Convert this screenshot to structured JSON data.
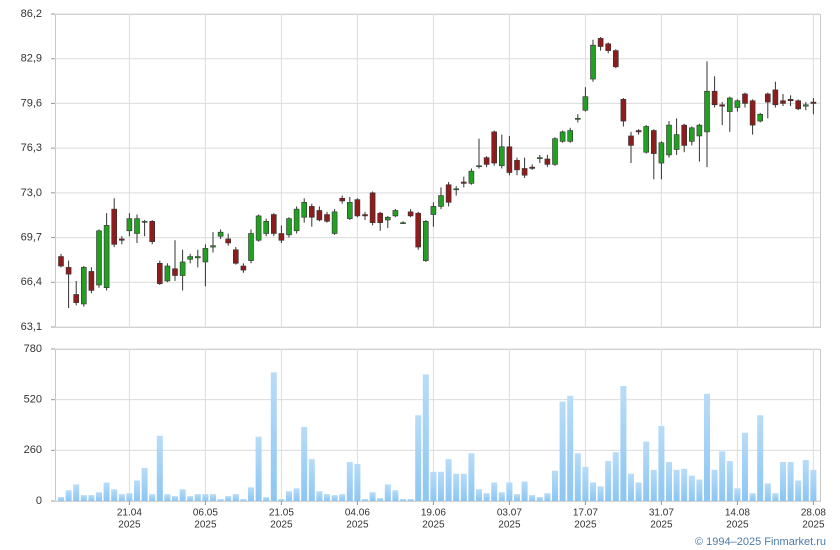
{
  "chart_data": [
    {
      "type": "candlestick",
      "up_color": "#22a022",
      "down_color": "#8e1c1c",
      "outline_color": "#333333",
      "grid": true,
      "ylim": [
        63.1,
        86.2
      ],
      "yticks": [
        {
          "value": 63.1,
          "label": "63,1"
        },
        {
          "value": 66.4,
          "label": "66,4"
        },
        {
          "value": 69.7,
          "label": "69,7"
        },
        {
          "value": 73.0,
          "label": "73,0"
        },
        {
          "value": 76.3,
          "label": "76,3"
        },
        {
          "value": 79.6,
          "label": "79,6"
        },
        {
          "value": 82.9,
          "label": "82,9"
        },
        {
          "value": 86.2,
          "label": "86,2"
        }
      ],
      "x": [
        "2025-04-08",
        "2025-04-09",
        "2025-04-10",
        "2025-04-11",
        "2025-04-14",
        "2025-04-15",
        "2025-04-16",
        "2025-04-17",
        "2025-04-18",
        "2025-04-21",
        "2025-04-22",
        "2025-04-23",
        "2025-04-24",
        "2025-04-25",
        "2025-04-28",
        "2025-04-29",
        "2025-04-30",
        "2025-05-02",
        "2025-05-05",
        "2025-05-06",
        "2025-05-07",
        "2025-05-08",
        "2025-05-12",
        "2025-05-13",
        "2025-05-14",
        "2025-05-15",
        "2025-05-16",
        "2025-05-19",
        "2025-05-20",
        "2025-05-21",
        "2025-05-22",
        "2025-05-23",
        "2025-05-26",
        "2025-05-27",
        "2025-05-28",
        "2025-05-29",
        "2025-05-30",
        "2025-06-02",
        "2025-06-03",
        "2025-06-04",
        "2025-06-05",
        "2025-06-06",
        "2025-06-09",
        "2025-06-10",
        "2025-06-11",
        "2025-06-13",
        "2025-06-16",
        "2025-06-17",
        "2025-06-18",
        "2025-06-19",
        "2025-06-20",
        "2025-06-23",
        "2025-06-24",
        "2025-06-25",
        "2025-06-26",
        "2025-06-27",
        "2025-06-30",
        "2025-07-01",
        "2025-07-02",
        "2025-07-03",
        "2025-07-04",
        "2025-07-07",
        "2025-07-08",
        "2025-07-09",
        "2025-07-10",
        "2025-07-11",
        "2025-07-14",
        "2025-07-15",
        "2025-07-16",
        "2025-07-17",
        "2025-07-18",
        "2025-07-21",
        "2025-07-22",
        "2025-07-23",
        "2025-07-24",
        "2025-07-25",
        "2025-07-28",
        "2025-07-29",
        "2025-07-30",
        "2025-07-31",
        "2025-08-01",
        "2025-08-04",
        "2025-08-05",
        "2025-08-06",
        "2025-08-07",
        "2025-08-08",
        "2025-08-11",
        "2025-08-12",
        "2025-08-13",
        "2025-08-14",
        "2025-08-15",
        "2025-08-18",
        "2025-08-19",
        "2025-08-20",
        "2025-08-21",
        "2025-08-22",
        "2025-08-25",
        "2025-08-26",
        "2025-08-27",
        "2025-08-28"
      ],
      "open": [
        68.3,
        67.5,
        65.5,
        64.8,
        67.2,
        66.2,
        66.0,
        71.8,
        69.6,
        70.2,
        70.0,
        70.9,
        70.9,
        67.8,
        66.5,
        67.4,
        66.9,
        68.1,
        68.2,
        67.9,
        69.0,
        69.8,
        69.6,
        68.8,
        67.6,
        68.0,
        69.5,
        70.0,
        71.4,
        70.0,
        69.9,
        70.2,
        71.2,
        72.0,
        71.7,
        71.4,
        70.0,
        72.6,
        71.1,
        72.5,
        71.4,
        73.0,
        71.5,
        71.0,
        71.3,
        70.8,
        71.6,
        71.5,
        68.0,
        71.4,
        72.0,
        73.6,
        73.3,
        73.8,
        73.7,
        75.0,
        75.6,
        77.5,
        75.0,
        76.4,
        75.4,
        74.8,
        74.9,
        75.6,
        75.5,
        75.1,
        76.8,
        76.8,
        78.5,
        79.1,
        81.4,
        84.4,
        84.0,
        83.5,
        79.9,
        77.2,
        77.6,
        76.0,
        77.6,
        75.2,
        75.8,
        76.2,
        78.0,
        76.8,
        77.2,
        77.5,
        80.5,
        79.5,
        79.0,
        79.3,
        80.3,
        79.8,
        78.3,
        80.3,
        80.6,
        79.8,
        79.9,
        79.8,
        79.4,
        79.7
      ],
      "high": [
        68.5,
        68.0,
        66.5,
        67.6,
        67.5,
        70.3,
        71.5,
        72.6,
        69.8,
        71.5,
        71.4,
        71.0,
        71.0,
        68.0,
        67.8,
        69.5,
        68.8,
        68.5,
        68.8,
        69.2,
        70.1,
        70.3,
        70.0,
        69.0,
        67.8,
        70.3,
        71.4,
        71.1,
        71.5,
        70.6,
        71.2,
        72.0,
        72.6,
        72.2,
        72.0,
        71.6,
        71.8,
        72.8,
        72.7,
        72.6,
        71.6,
        73.1,
        71.6,
        71.3,
        71.8,
        70.9,
        71.8,
        71.6,
        71.0,
        72.3,
        73.4,
        73.8,
        73.5,
        74.2,
        74.8,
        77.0,
        75.7,
        77.6,
        77.3,
        77.2,
        75.6,
        75.6,
        75.1,
        75.8,
        75.8,
        77.1,
        77.6,
        77.8,
        78.8,
        80.8,
        84.3,
        84.5,
        84.1,
        83.6,
        80.0,
        77.5,
        77.7,
        78.0,
        77.7,
        76.8,
        78.3,
        78.5,
        78.1,
        77.9,
        78.1,
        82.7,
        81.6,
        79.7,
        80.1,
        79.9,
        80.4,
        79.9,
        78.9,
        80.4,
        81.2,
        80.3,
        80.2,
        79.9,
        79.7,
        80.0
      ],
      "low": [
        67.5,
        64.5,
        64.7,
        64.6,
        65.6,
        66.0,
        65.8,
        69.0,
        69.2,
        69.8,
        69.3,
        69.8,
        69.2,
        66.2,
        66.4,
        66.5,
        65.8,
        67.8,
        67.5,
        66.1,
        68.6,
        69.6,
        69.1,
        67.7,
        67.1,
        67.8,
        69.4,
        69.8,
        69.8,
        69.3,
        69.7,
        70.0,
        70.8,
        70.5,
        70.9,
        70.8,
        69.9,
        72.2,
        71.0,
        71.2,
        71.0,
        70.6,
        70.2,
        70.4,
        71.2,
        70.7,
        71.2,
        68.8,
        67.9,
        70.5,
        71.8,
        72.0,
        72.8,
        73.4,
        73.6,
        74.8,
        74.9,
        75.0,
        74.8,
        74.3,
        74.3,
        74.1,
        74.7,
        75.2,
        74.9,
        75.0,
        76.7,
        76.7,
        78.2,
        79.0,
        81.2,
        83.5,
        83.3,
        82.2,
        77.9,
        75.2,
        77.3,
        75.9,
        74.0,
        74.0,
        75.6,
        75.8,
        76.0,
        76.5,
        75.3,
        74.9,
        79.3,
        78.0,
        77.5,
        79.0,
        79.3,
        77.3,
        78.2,
        78.5,
        79.3,
        79.4,
        79.4,
        79.1,
        79.1,
        78.8
      ],
      "close": [
        67.6,
        67.0,
        64.9,
        67.5,
        65.8,
        70.2,
        70.6,
        69.2,
        69.5,
        71.1,
        71.1,
        70.9,
        69.4,
        66.3,
        67.6,
        66.9,
        67.9,
        68.3,
        68.3,
        68.9,
        69.1,
        70.1,
        69.3,
        67.8,
        67.3,
        70.0,
        71.3,
        70.9,
        70.0,
        69.5,
        71.1,
        71.8,
        72.3,
        71.2,
        71.0,
        70.9,
        71.6,
        72.4,
        72.3,
        71.3,
        71.3,
        70.8,
        70.8,
        71.2,
        71.7,
        70.8,
        71.3,
        69.0,
        70.9,
        72.0,
        72.8,
        72.3,
        73.3,
        73.7,
        74.6,
        75.0,
        75.1,
        75.2,
        76.4,
        74.5,
        74.7,
        74.3,
        74.8,
        75.6,
        75.1,
        77.0,
        77.5,
        77.6,
        78.5,
        80.1,
        83.9,
        83.8,
        83.5,
        82.3,
        78.3,
        76.5,
        77.5,
        77.9,
        75.9,
        76.7,
        78.0,
        77.3,
        76.5,
        77.8,
        78.0,
        80.5,
        79.5,
        79.4,
        80.0,
        79.8,
        79.6,
        78.0,
        78.8,
        79.7,
        79.5,
        79.6,
        79.8,
        79.2,
        79.5,
        79.6
      ]
    },
    {
      "type": "bar",
      "color": "#8cc6f2",
      "grid": true,
      "ylim": [
        0,
        780
      ],
      "yticks": [
        0,
        260,
        520,
        780
      ],
      "xticks": [
        {
          "value": "2025-04-21",
          "label": [
            "21.04",
            "2025"
          ]
        },
        {
          "value": "2025-05-06",
          "label": [
            "06.05",
            "2025"
          ]
        },
        {
          "value": "2025-05-21",
          "label": [
            "21.05",
            "2025"
          ]
        },
        {
          "value": "2025-06-04",
          "label": [
            "04.06",
            "2025"
          ]
        },
        {
          "value": "2025-06-19",
          "label": [
            "19.06",
            "2025"
          ]
        },
        {
          "value": "2025-07-03",
          "label": [
            "03.07",
            "2025"
          ]
        },
        {
          "value": "2025-07-17",
          "label": [
            "17.07",
            "2025"
          ]
        },
        {
          "value": "2025-07-31",
          "label": [
            "31.07",
            "2025"
          ]
        },
        {
          "value": "2025-08-14",
          "label": [
            "14.08",
            "2025"
          ]
        },
        {
          "value": "2025-08-28",
          "label": [
            "28.08",
            "2025"
          ]
        }
      ],
      "values": [
        20,
        55,
        85,
        30,
        30,
        45,
        95,
        60,
        35,
        40,
        105,
        170,
        35,
        335,
        35,
        25,
        60,
        25,
        35,
        35,
        35,
        10,
        25,
        35,
        10,
        70,
        330,
        20,
        660,
        10,
        50,
        65,
        380,
        215,
        50,
        35,
        30,
        35,
        200,
        190,
        10,
        45,
        15,
        85,
        55,
        10,
        10,
        440,
        650,
        150,
        150,
        215,
        140,
        140,
        245,
        60,
        40,
        95,
        45,
        95,
        35,
        100,
        30,
        20,
        40,
        155,
        510,
        540,
        245,
        175,
        95,
        75,
        205,
        250,
        590,
        140,
        95,
        305,
        160,
        385,
        200,
        160,
        165,
        130,
        110,
        550,
        160,
        255,
        205,
        65,
        350,
        40,
        440,
        90,
        40,
        200,
        200,
        105,
        210,
        160
      ]
    }
  ],
  "footer": "© 1994–2025 Finmarket.ru"
}
